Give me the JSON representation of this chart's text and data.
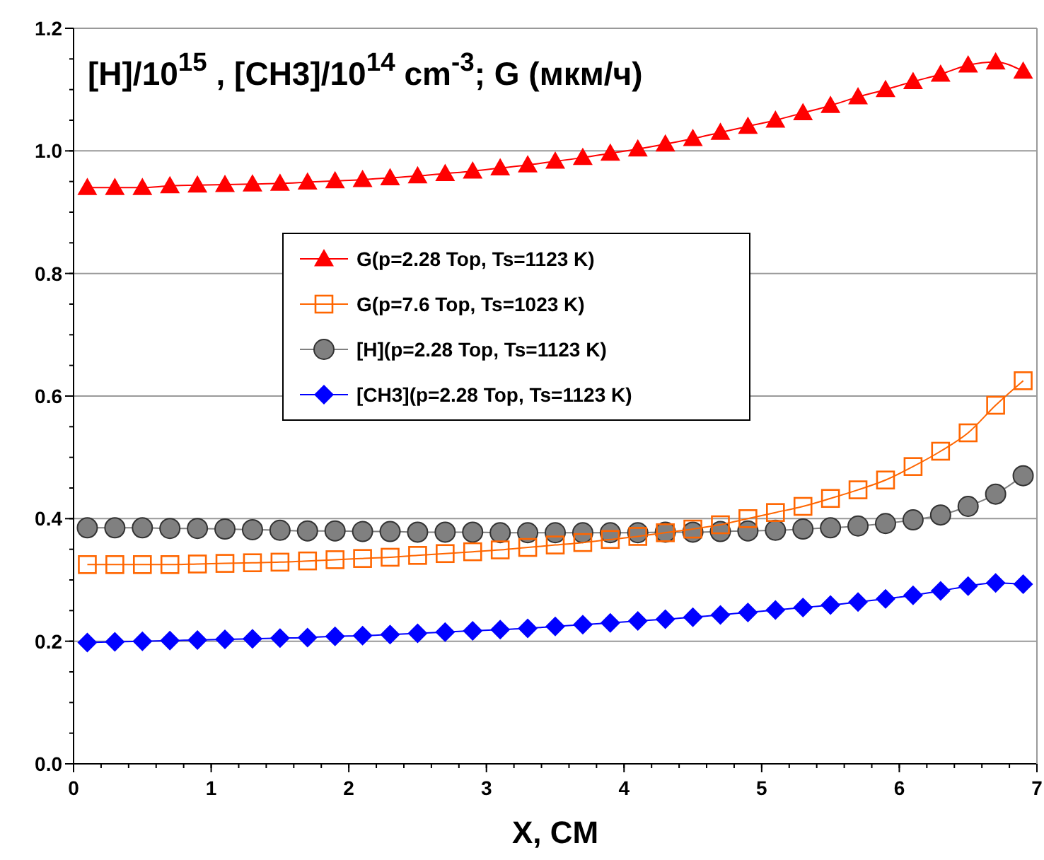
{
  "chart_data": {
    "type": "line",
    "title": "[H]/10$^{15}$ , [CH3]/10$^{14}$ cm$^{-3}$;  G (мкм/ч)",
    "xlabel": "X, CM",
    "x": [
      0.1,
      0.3,
      0.5,
      0.7,
      0.9,
      1.1,
      1.3,
      1.5,
      1.7,
      1.9,
      2.1,
      2.3,
      2.5,
      2.7,
      2.9,
      3.1,
      3.3,
      3.5,
      3.7,
      3.9,
      4.1,
      4.3,
      4.5,
      4.7,
      4.9,
      5.1,
      5.3,
      5.5,
      5.7,
      5.9,
      6.1,
      6.3,
      6.5,
      6.7,
      6.9
    ],
    "series": [
      {
        "name": "G(p=2.28 Top, Ts=1123 K)",
        "color": "#ff0000",
        "marker": "triangle",
        "values": [
          0.94,
          0.94,
          0.94,
          0.943,
          0.944,
          0.945,
          0.946,
          0.947,
          0.949,
          0.951,
          0.953,
          0.956,
          0.959,
          0.963,
          0.967,
          0.972,
          0.977,
          0.983,
          0.989,
          0.996,
          1.003,
          1.011,
          1.02,
          1.03,
          1.04,
          1.05,
          1.062,
          1.074,
          1.088,
          1.1,
          1.113,
          1.125,
          1.14,
          1.145,
          1.13
        ]
      },
      {
        "name": "G(p=7.6 Top, Ts=1023 K)",
        "color": "#ff6600",
        "marker": "square",
        "values": [
          0.325,
          0.325,
          0.325,
          0.325,
          0.326,
          0.327,
          0.328,
          0.329,
          0.331,
          0.333,
          0.335,
          0.337,
          0.34,
          0.343,
          0.346,
          0.349,
          0.353,
          0.357,
          0.361,
          0.366,
          0.371,
          0.377,
          0.383,
          0.39,
          0.4,
          0.41,
          0.42,
          0.433,
          0.447,
          0.463,
          0.485,
          0.51,
          0.54,
          0.585,
          0.625
        ]
      },
      {
        "name": "[H](p=2.28 Top, Ts=1123 K)",
        "color": "#808080",
        "marker": "circle",
        "values": [
          0.385,
          0.385,
          0.385,
          0.384,
          0.384,
          0.383,
          0.382,
          0.381,
          0.38,
          0.38,
          0.379,
          0.379,
          0.378,
          0.378,
          0.378,
          0.377,
          0.377,
          0.377,
          0.377,
          0.377,
          0.377,
          0.378,
          0.378,
          0.379,
          0.38,
          0.381,
          0.383,
          0.385,
          0.388,
          0.392,
          0.398,
          0.406,
          0.42,
          0.44,
          0.47
        ]
      },
      {
        "name": "[CH3](p=2.28 Top, Ts=1123 K)",
        "color": "#0000ff",
        "marker": "diamond",
        "values": [
          0.198,
          0.199,
          0.2,
          0.201,
          0.202,
          0.203,
          0.204,
          0.205,
          0.206,
          0.208,
          0.209,
          0.211,
          0.213,
          0.215,
          0.217,
          0.219,
          0.221,
          0.224,
          0.227,
          0.23,
          0.233,
          0.236,
          0.239,
          0.243,
          0.247,
          0.251,
          0.255,
          0.259,
          0.264,
          0.269,
          0.275,
          0.282,
          0.29,
          0.295,
          0.293
        ]
      }
    ],
    "xlim": [
      0,
      7
    ],
    "xticks": [
      0,
      1,
      2,
      3,
      4,
      5,
      6,
      7
    ],
    "ylim": [
      0,
      1.2
    ],
    "yticks": [
      {
        "value": 0,
        "label": "0.0"
      },
      {
        "value": 0.2,
        "label": "0.2"
      },
      {
        "value": 0.4,
        "label": "0.4"
      },
      {
        "value": 0.6,
        "label": "0.6"
      },
      {
        "value": 0.8,
        "label": "0.8"
      },
      {
        "value": 1,
        "label": "1.0"
      },
      {
        "value": 1.2,
        "label": "1.2"
      }
    ],
    "grid": "y",
    "legend": "center",
    "line_style": "solid"
  }
}
